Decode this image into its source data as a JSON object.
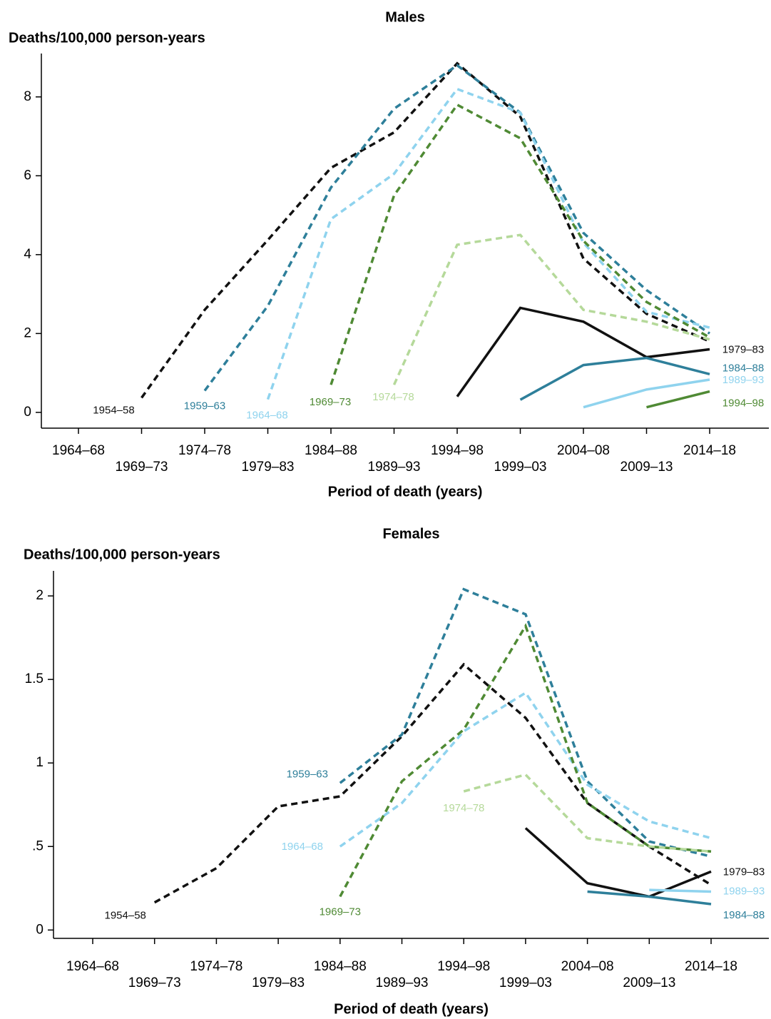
{
  "chart_data": [
    {
      "type": "line",
      "title": "Males",
      "y_label": "Deaths/100,000 person-years",
      "x_label": "Period of death (years)",
      "categories": [
        "1964–68",
        "1969–73",
        "1974–78",
        "1979–83",
        "1984–88",
        "1989–93",
        "1994–98",
        "1999–03",
        "2004–08",
        "2009–13",
        "2014–18"
      ],
      "ylim": [
        -0.4,
        9.1
      ],
      "yticks": [
        0,
        2,
        4,
        6,
        8
      ],
      "series": [
        {
          "name": "1954–58",
          "color": "#111111",
          "style": "dashed",
          "values": [
            null,
            0.37,
            2.6,
            4.37,
            6.2,
            7.1,
            8.85,
            7.5,
            3.9,
            2.5,
            1.8
          ]
        },
        {
          "name": "1959–63",
          "color": "#2e7f9a",
          "style": "dashed",
          "values": [
            null,
            null,
            0.55,
            2.7,
            5.7,
            7.7,
            8.8,
            7.6,
            4.55,
            3.1,
            2.0
          ]
        },
        {
          "name": "1964–68",
          "color": "#8fd3ee",
          "style": "dashed",
          "values": [
            null,
            null,
            null,
            0.33,
            4.9,
            6.05,
            8.2,
            7.6,
            4.3,
            2.55,
            2.15
          ]
        },
        {
          "name": "1969–73",
          "color": "#4f8a34",
          "style": "dashed",
          "values": [
            null,
            null,
            null,
            null,
            0.7,
            5.5,
            7.8,
            6.95,
            4.35,
            2.8,
            1.9
          ]
        },
        {
          "name": "1974–78",
          "color": "#b5d99a",
          "style": "dashed",
          "values": [
            null,
            null,
            null,
            null,
            null,
            0.7,
            4.25,
            4.5,
            2.6,
            2.3,
            1.85
          ]
        },
        {
          "name": "1979–83",
          "color": "#111111",
          "style": "solid",
          "values": [
            null,
            null,
            null,
            null,
            null,
            null,
            0.4,
            2.65,
            2.3,
            1.4,
            1.6
          ]
        },
        {
          "name": "1984–88",
          "color": "#2e7f9a",
          "style": "solid",
          "values": [
            null,
            null,
            null,
            null,
            null,
            null,
            null,
            0.32,
            1.2,
            1.38,
            0.97
          ]
        },
        {
          "name": "1989–93",
          "color": "#8fd3ee",
          "style": "solid",
          "values": [
            null,
            null,
            null,
            null,
            null,
            null,
            null,
            null,
            0.13,
            0.58,
            0.83
          ]
        },
        {
          "name": "1994–98",
          "color": "#4f8a34",
          "style": "solid",
          "values": [
            null,
            null,
            null,
            null,
            null,
            null,
            null,
            null,
            null,
            0.13,
            0.53
          ]
        }
      ]
    },
    {
      "type": "line",
      "title": "Females",
      "y_label": "Deaths/100,000 person-years",
      "x_label": "Period of death (years)",
      "categories": [
        "1964–68",
        "1969–73",
        "1974–78",
        "1979–83",
        "1984–88",
        "1989–93",
        "1994–98",
        "1999–03",
        "2004–08",
        "2009–13",
        "2014–18"
      ],
      "ylim": [
        -0.05,
        2.15
      ],
      "yticks": [
        0,
        {
          "value": 0.5,
          "label": ".5"
        },
        1,
        1.5,
        2
      ],
      "series": [
        {
          "name": "1954–58",
          "color": "#111111",
          "style": "dashed",
          "values": [
            null,
            0.165,
            0.37,
            0.74,
            0.8,
            1.16,
            1.59,
            1.27,
            0.76,
            0.5,
            0.27
          ]
        },
        {
          "name": "1959–63",
          "color": "#2e7f9a",
          "style": "dashed",
          "values": [
            null,
            null,
            null,
            null,
            0.88,
            1.17,
            2.04,
            1.89,
            0.89,
            0.53,
            0.44
          ]
        },
        {
          "name": "1964–68",
          "color": "#8fd3ee",
          "style": "dashed",
          "values": [
            null,
            null,
            null,
            null,
            0.5,
            0.76,
            1.19,
            1.42,
            0.87,
            0.65,
            0.55
          ]
        },
        {
          "name": "1969–73",
          "color": "#4f8a34",
          "style": "dashed",
          "values": [
            null,
            null,
            null,
            null,
            0.2,
            0.89,
            1.2,
            1.82,
            0.76,
            0.5,
            0.47
          ]
        },
        {
          "name": "1974–78",
          "color": "#b5d99a",
          "style": "dashed",
          "values": [
            null,
            null,
            null,
            null,
            null,
            null,
            0.83,
            0.93,
            0.55,
            0.5,
            0.47
          ]
        },
        {
          "name": "1979–83",
          "color": "#111111",
          "style": "solid",
          "values": [
            null,
            null,
            null,
            null,
            null,
            null,
            null,
            0.61,
            0.28,
            0.2,
            0.35
          ]
        },
        {
          "name": "1984–88",
          "color": "#2e7f9a",
          "style": "solid",
          "values": [
            null,
            null,
            null,
            null,
            null,
            null,
            null,
            null,
            0.23,
            0.2,
            0.155
          ]
        },
        {
          "name": "1989–93",
          "color": "#8fd3ee",
          "style": "solid",
          "values": [
            null,
            null,
            null,
            null,
            null,
            null,
            null,
            null,
            null,
            0.24,
            0.23
          ]
        }
      ]
    }
  ]
}
